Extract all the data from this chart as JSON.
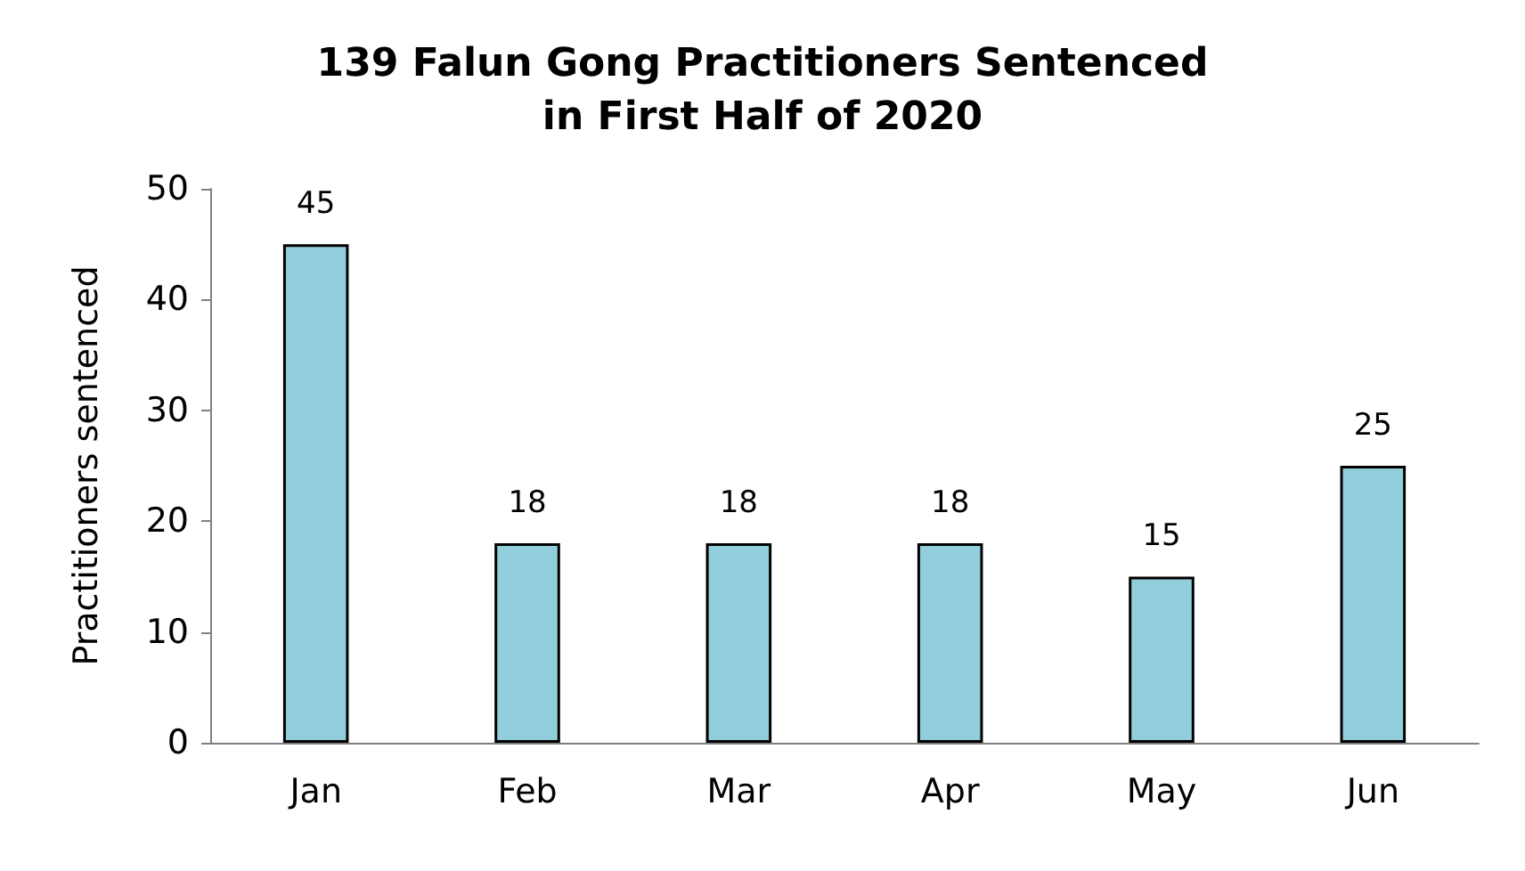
{
  "chart_data": {
    "type": "bar",
    "title": "139 Falun Gong Practitioners Sentenced\nin First Half of 2020",
    "ylabel": "Practitioners sentenced",
    "categories": [
      "Jan",
      "Feb",
      "Mar",
      "Apr",
      "May",
      "Jun"
    ],
    "values": [
      45,
      18,
      18,
      18,
      15,
      25
    ],
    "color": "#92cddc",
    "ylim": [
      0,
      50
    ],
    "yticks": [
      0,
      10,
      20,
      30,
      40,
      50
    ],
    "grid": false,
    "data_labels": true
  }
}
